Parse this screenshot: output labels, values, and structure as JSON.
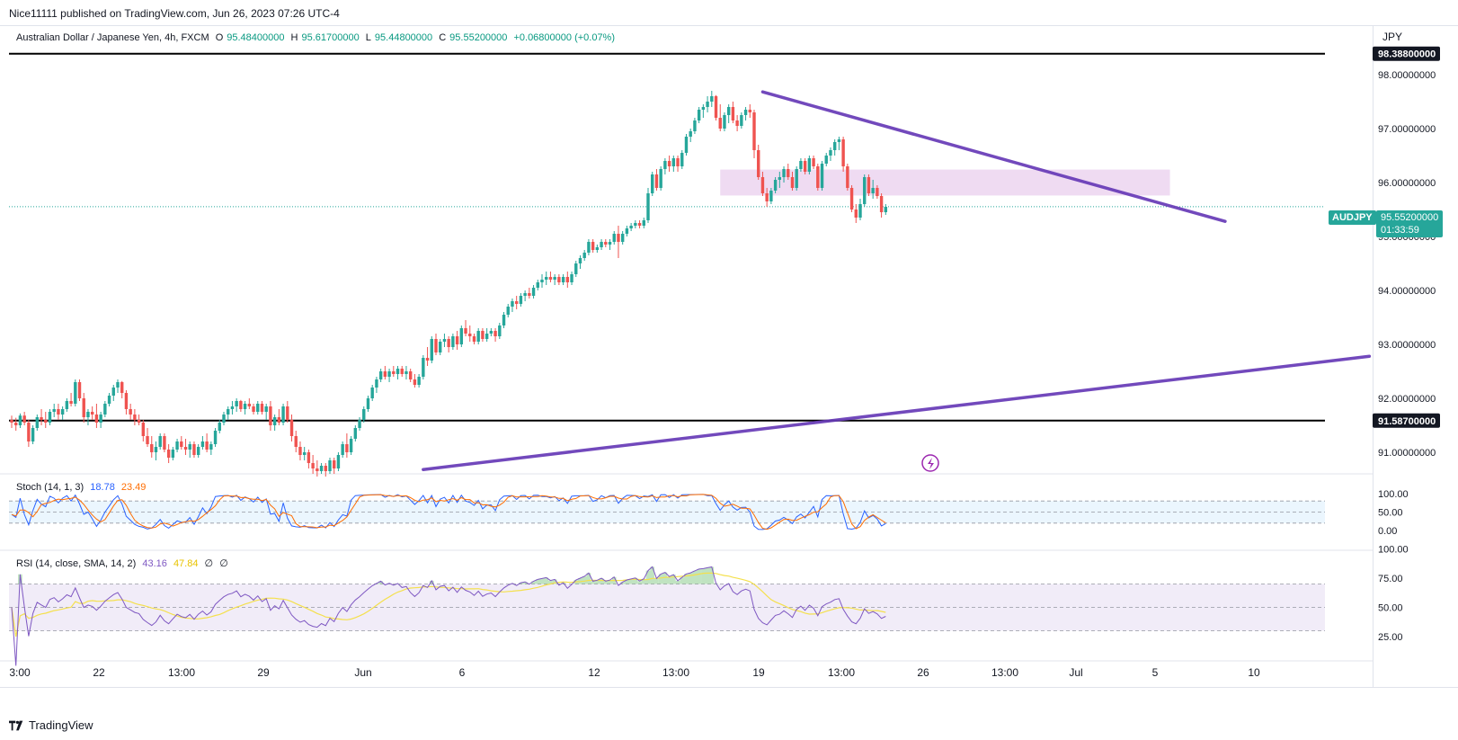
{
  "header": {
    "published": "Nice11111 published on TradingView.com, Jun 26, 2023 07:26 UTC-4"
  },
  "legend": {
    "symbol": "Australian Dollar / Japanese Yen, 4h, FXCM",
    "open_label": "O",
    "open": "95.48400000",
    "high_label": "H",
    "high": "95.61700000",
    "low_label": "L",
    "low": "95.44800000",
    "close_label": "C",
    "close": "95.55200000",
    "change": "+0.06800000 (+0.07%)"
  },
  "currency": "JPY",
  "price_axis": {
    "ticks": [
      "98.00000000",
      "97.00000000",
      "96.00000000",
      "95.00000000",
      "94.00000000",
      "93.00000000",
      "92.00000000",
      "91.00000000"
    ],
    "levels": [
      {
        "label": "98.38800000",
        "value": 98.388
      },
      {
        "label": "91.58700000",
        "value": 91.587
      }
    ],
    "ticker": "AUDJPY",
    "last_price": "95.55200000",
    "countdown": "01:33:59"
  },
  "time_axis": [
    "3:00",
    "22",
    "13:00",
    "29",
    "Jun",
    "6",
    "12",
    "13:00",
    "19",
    "13:00",
    "26",
    "13:00",
    "Jul",
    "5",
    "10"
  ],
  "stoch": {
    "label": "Stoch (14, 1, 3)",
    "k": "18.78",
    "d": "23.49",
    "axis": [
      "100.00",
      "50.00",
      "0.00"
    ],
    "colors": {
      "k": "#2962ff",
      "d": "#ff6d00",
      "band": "#e3f2fd"
    }
  },
  "rsi": {
    "label": "RSI (14, close, SMA, 14, 2)",
    "rsi": "43.16",
    "ma": "47.84",
    "extra1": "∅",
    "extra2": "∅",
    "axis": [
      "100.00",
      "75.00",
      "50.00",
      "25.00"
    ],
    "colors": {
      "rsi": "#7e57c2",
      "ma": "#f4e04d",
      "band": "#ede7f6"
    }
  },
  "footer": {
    "brand": "TradingView"
  },
  "chart_data": {
    "type": "candlestick",
    "symbol": "AUDJPY",
    "timeframe": "4h",
    "ylim": [
      90.6,
      98.9
    ],
    "horizontal_levels": [
      98.388,
      91.587
    ],
    "trendlines": [
      {
        "from": {
          "bar": 177,
          "price": 97.68
        },
        "to": {
          "bar": 286,
          "price": 95.28
        }
      },
      {
        "from": {
          "bar": 97,
          "price": 90.68
        },
        "to": {
          "bar": 320,
          "price": 92.78
        }
      }
    ],
    "zone": {
      "from_bar": 167,
      "to_bar": 273,
      "low": 95.76,
      "high": 96.24
    },
    "ohlc": [
      [
        91.6,
        91.68,
        91.45,
        91.55
      ],
      [
        91.55,
        91.64,
        91.4,
        91.5
      ],
      [
        91.5,
        91.72,
        91.45,
        91.68
      ],
      [
        91.68,
        91.75,
        91.5,
        91.55
      ],
      [
        91.55,
        91.6,
        91.1,
        91.2
      ],
      [
        91.2,
        91.5,
        91.15,
        91.45
      ],
      [
        91.45,
        91.7,
        91.4,
        91.65
      ],
      [
        91.65,
        91.8,
        91.5,
        91.6
      ],
      [
        91.6,
        91.75,
        91.45,
        91.55
      ],
      [
        91.55,
        91.8,
        91.5,
        91.75
      ],
      [
        91.75,
        91.9,
        91.65,
        91.8
      ],
      [
        91.8,
        91.9,
        91.6,
        91.7
      ],
      [
        91.7,
        91.85,
        91.6,
        91.8
      ],
      [
        91.8,
        92.0,
        91.75,
        91.95
      ],
      [
        91.95,
        92.1,
        91.85,
        91.9
      ],
      [
        91.9,
        92.35,
        91.85,
        92.3
      ],
      [
        92.3,
        92.35,
        91.95,
        92.0
      ],
      [
        92.0,
        92.1,
        91.55,
        91.65
      ],
      [
        91.65,
        91.8,
        91.5,
        91.75
      ],
      [
        91.75,
        91.85,
        91.6,
        91.7
      ],
      [
        91.7,
        91.9,
        91.45,
        91.55
      ],
      [
        91.55,
        91.75,
        91.45,
        91.7
      ],
      [
        91.7,
        91.95,
        91.65,
        91.9
      ],
      [
        91.9,
        92.1,
        91.85,
        92.05
      ],
      [
        92.05,
        92.25,
        91.95,
        92.2
      ],
      [
        92.2,
        92.35,
        92.1,
        92.3
      ],
      [
        92.3,
        92.32,
        92.0,
        92.1
      ],
      [
        92.1,
        92.15,
        91.7,
        91.8
      ],
      [
        91.8,
        91.9,
        91.6,
        91.7
      ],
      [
        91.7,
        91.8,
        91.5,
        91.6
      ],
      [
        91.6,
        91.7,
        91.5,
        91.55
      ],
      [
        91.55,
        91.6,
        91.2,
        91.3
      ],
      [
        91.3,
        91.45,
        91.1,
        91.15
      ],
      [
        91.15,
        91.3,
        90.9,
        91.0
      ],
      [
        91.0,
        91.2,
        90.85,
        91.1
      ],
      [
        91.1,
        91.35,
        91.05,
        91.3
      ],
      [
        91.3,
        91.35,
        91.0,
        91.05
      ],
      [
        91.05,
        91.15,
        90.8,
        90.9
      ],
      [
        90.9,
        91.1,
        90.85,
        91.05
      ],
      [
        91.05,
        91.25,
        91.0,
        91.2
      ],
      [
        91.2,
        91.3,
        91.05,
        91.1
      ],
      [
        91.1,
        91.25,
        90.95,
        91.05
      ],
      [
        91.05,
        91.2,
        90.9,
        91.15
      ],
      [
        91.15,
        91.2,
        90.9,
        90.95
      ],
      [
        90.95,
        91.15,
        90.9,
        91.1
      ],
      [
        91.1,
        91.3,
        91.05,
        91.2
      ],
      [
        91.2,
        91.35,
        91.0,
        91.05
      ],
      [
        91.05,
        91.2,
        90.95,
        91.15
      ],
      [
        91.15,
        91.45,
        91.1,
        91.4
      ],
      [
        91.4,
        91.6,
        91.35,
        91.55
      ],
      [
        91.55,
        91.75,
        91.5,
        91.7
      ],
      [
        91.7,
        91.85,
        91.6,
        91.8
      ],
      [
        91.8,
        91.95,
        91.7,
        91.85
      ],
      [
        91.85,
        92.0,
        91.75,
        91.95
      ],
      [
        91.95,
        91.97,
        91.75,
        91.8
      ],
      [
        91.8,
        91.95,
        91.7,
        91.9
      ],
      [
        91.9,
        92.0,
        91.8,
        91.85
      ],
      [
        91.85,
        91.9,
        91.7,
        91.75
      ],
      [
        91.75,
        91.95,
        91.7,
        91.9
      ],
      [
        91.9,
        91.95,
        91.7,
        91.75
      ],
      [
        91.75,
        91.9,
        91.6,
        91.85
      ],
      [
        91.85,
        91.95,
        91.4,
        91.5
      ],
      [
        91.5,
        91.7,
        91.4,
        91.65
      ],
      [
        91.65,
        91.8,
        91.5,
        91.55
      ],
      [
        91.55,
        91.9,
        91.5,
        91.85
      ],
      [
        91.85,
        91.95,
        91.55,
        91.6
      ],
      [
        91.6,
        91.7,
        91.2,
        91.3
      ],
      [
        91.3,
        91.4,
        91.0,
        91.1
      ],
      [
        91.1,
        91.2,
        90.85,
        90.95
      ],
      [
        90.95,
        91.1,
        90.85,
        91.0
      ],
      [
        91.0,
        91.05,
        90.7,
        90.8
      ],
      [
        90.8,
        90.95,
        90.6,
        90.7
      ],
      [
        90.7,
        90.85,
        90.55,
        90.65
      ],
      [
        90.65,
        90.8,
        90.6,
        90.75
      ],
      [
        90.75,
        90.8,
        90.55,
        90.65
      ],
      [
        90.65,
        90.9,
        90.6,
        90.85
      ],
      [
        90.85,
        90.9,
        90.6,
        90.7
      ],
      [
        90.7,
        91.0,
        90.65,
        90.95
      ],
      [
        90.95,
        91.2,
        90.9,
        91.15
      ],
      [
        91.15,
        91.35,
        90.9,
        91.0
      ],
      [
        91.0,
        91.3,
        90.95,
        91.25
      ],
      [
        91.25,
        91.5,
        91.2,
        91.45
      ],
      [
        91.45,
        91.65,
        91.4,
        91.6
      ],
      [
        91.6,
        91.85,
        91.55,
        91.8
      ],
      [
        91.8,
        92.05,
        91.75,
        92.0
      ],
      [
        92.0,
        92.25,
        91.95,
        92.2
      ],
      [
        92.2,
        92.4,
        92.1,
        92.35
      ],
      [
        92.35,
        92.55,
        92.3,
        92.5
      ],
      [
        92.5,
        92.6,
        92.35,
        92.4
      ],
      [
        92.4,
        92.55,
        92.3,
        92.5
      ],
      [
        92.5,
        92.6,
        92.4,
        92.45
      ],
      [
        92.45,
        92.6,
        92.35,
        92.55
      ],
      [
        92.55,
        92.6,
        92.4,
        92.45
      ],
      [
        92.45,
        92.6,
        92.35,
        92.5
      ],
      [
        92.5,
        92.55,
        92.3,
        92.35
      ],
      [
        92.35,
        92.45,
        92.2,
        92.25
      ],
      [
        92.25,
        92.45,
        92.2,
        92.4
      ],
      [
        92.4,
        92.8,
        92.35,
        92.75
      ],
      [
        92.75,
        92.95,
        92.6,
        92.7
      ],
      [
        92.7,
        93.15,
        92.65,
        93.1
      ],
      [
        93.1,
        93.2,
        92.8,
        92.85
      ],
      [
        92.85,
        93.1,
        92.8,
        93.05
      ],
      [
        93.05,
        93.2,
        92.95,
        93.1
      ],
      [
        93.1,
        93.15,
        92.85,
        92.95
      ],
      [
        92.95,
        93.2,
        92.9,
        93.15
      ],
      [
        93.15,
        93.25,
        92.9,
        93.0
      ],
      [
        93.0,
        93.35,
        92.95,
        93.3
      ],
      [
        93.3,
        93.45,
        93.15,
        93.2
      ],
      [
        93.2,
        93.35,
        93.05,
        93.15
      ],
      [
        93.15,
        93.2,
        93.0,
        93.05
      ],
      [
        93.05,
        93.3,
        93.0,
        93.25
      ],
      [
        93.25,
        93.3,
        93.05,
        93.1
      ],
      [
        93.1,
        93.3,
        93.05,
        93.2
      ],
      [
        93.2,
        93.3,
        93.15,
        93.25
      ],
      [
        93.25,
        93.3,
        93.05,
        93.15
      ],
      [
        93.15,
        93.4,
        93.1,
        93.35
      ],
      [
        93.35,
        93.6,
        93.3,
        93.55
      ],
      [
        93.55,
        93.75,
        93.5,
        93.7
      ],
      [
        93.7,
        93.85,
        93.6,
        93.8
      ],
      [
        93.8,
        93.9,
        93.65,
        93.75
      ],
      [
        93.75,
        93.95,
        93.7,
        93.9
      ],
      [
        93.9,
        94.0,
        93.8,
        93.95
      ],
      [
        93.95,
        94.05,
        93.85,
        93.9
      ],
      [
        93.9,
        94.1,
        93.85,
        94.05
      ],
      [
        94.05,
        94.2,
        94.0,
        94.15
      ],
      [
        94.15,
        94.3,
        94.05,
        94.2
      ],
      [
        94.2,
        94.35,
        94.1,
        94.25
      ],
      [
        94.25,
        94.35,
        94.15,
        94.2
      ],
      [
        94.2,
        94.3,
        94.1,
        94.25
      ],
      [
        94.25,
        94.3,
        94.1,
        94.15
      ],
      [
        94.15,
        94.3,
        94.1,
        94.25
      ],
      [
        94.25,
        94.35,
        94.05,
        94.15
      ],
      [
        94.15,
        94.35,
        94.1,
        94.3
      ],
      [
        94.3,
        94.55,
        94.25,
        94.5
      ],
      [
        94.5,
        94.65,
        94.4,
        94.6
      ],
      [
        94.6,
        94.75,
        94.55,
        94.7
      ],
      [
        94.7,
        94.95,
        94.65,
        94.9
      ],
      [
        94.9,
        94.95,
        94.7,
        94.75
      ],
      [
        94.75,
        94.85,
        94.7,
        94.8
      ],
      [
        94.8,
        94.95,
        94.75,
        94.9
      ],
      [
        94.9,
        94.95,
        94.8,
        94.85
      ],
      [
        94.85,
        94.95,
        94.75,
        94.9
      ],
      [
        94.9,
        95.1,
        94.85,
        95.05
      ],
      [
        95.05,
        95.2,
        94.6,
        94.9
      ],
      [
        94.9,
        95.1,
        94.85,
        95.05
      ],
      [
        95.05,
        95.2,
        95.0,
        95.15
      ],
      [
        95.15,
        95.25,
        95.1,
        95.2
      ],
      [
        95.2,
        95.3,
        95.15,
        95.25
      ],
      [
        95.25,
        95.3,
        95.15,
        95.2
      ],
      [
        95.2,
        95.35,
        95.15,
        95.3
      ],
      [
        95.3,
        95.9,
        95.25,
        95.8
      ],
      [
        95.8,
        96.2,
        95.75,
        96.15
      ],
      [
        96.15,
        96.25,
        95.85,
        95.9
      ],
      [
        95.9,
        96.3,
        95.85,
        96.25
      ],
      [
        96.25,
        96.45,
        96.15,
        96.4
      ],
      [
        96.4,
        96.5,
        96.2,
        96.3
      ],
      [
        96.3,
        96.5,
        96.2,
        96.45
      ],
      [
        96.45,
        96.5,
        96.2,
        96.3
      ],
      [
        96.3,
        96.6,
        96.25,
        96.55
      ],
      [
        96.55,
        96.9,
        96.5,
        96.85
      ],
      [
        96.85,
        97.0,
        96.75,
        96.95
      ],
      [
        96.95,
        97.2,
        96.9,
        97.15
      ],
      [
        97.15,
        97.4,
        97.1,
        97.35
      ],
      [
        97.35,
        97.45,
        97.2,
        97.4
      ],
      [
        97.4,
        97.6,
        97.3,
        97.5
      ],
      [
        97.5,
        97.7,
        97.4,
        97.6
      ],
      [
        97.6,
        97.62,
        97.15,
        97.2
      ],
      [
        97.2,
        97.45,
        96.95,
        97.0
      ],
      [
        97.0,
        97.3,
        96.95,
        97.25
      ],
      [
        97.25,
        97.45,
        97.1,
        97.4
      ],
      [
        97.4,
        97.5,
        97.1,
        97.15
      ],
      [
        97.15,
        97.25,
        96.95,
        97.05
      ],
      [
        97.05,
        97.3,
        97.0,
        97.25
      ],
      [
        97.25,
        97.4,
        97.15,
        97.35
      ],
      [
        97.35,
        97.45,
        97.2,
        97.3
      ],
      [
        97.3,
        97.35,
        96.45,
        96.6
      ],
      [
        96.6,
        96.7,
        96.05,
        96.1
      ],
      [
        96.1,
        96.2,
        95.75,
        95.8
      ],
      [
        95.8,
        95.9,
        95.55,
        95.65
      ],
      [
        95.65,
        95.9,
        95.6,
        95.85
      ],
      [
        95.85,
        96.1,
        95.8,
        96.05
      ],
      [
        96.05,
        96.2,
        95.9,
        96.1
      ],
      [
        96.1,
        96.3,
        96.0,
        96.25
      ],
      [
        96.25,
        96.35,
        96.05,
        96.1
      ],
      [
        96.1,
        96.2,
        95.85,
        95.9
      ],
      [
        95.9,
        96.3,
        95.85,
        96.25
      ],
      [
        96.25,
        96.45,
        96.2,
        96.4
      ],
      [
        96.4,
        96.45,
        96.15,
        96.2
      ],
      [
        96.2,
        96.5,
        96.15,
        96.45
      ],
      [
        96.45,
        96.5,
        96.25,
        96.3
      ],
      [
        96.3,
        96.35,
        95.85,
        95.9
      ],
      [
        95.9,
        96.4,
        95.85,
        96.35
      ],
      [
        96.35,
        96.55,
        96.3,
        96.5
      ],
      [
        96.5,
        96.65,
        96.4,
        96.6
      ],
      [
        96.6,
        96.8,
        96.5,
        96.75
      ],
      [
        96.75,
        96.85,
        96.6,
        96.8
      ],
      [
        96.8,
        96.85,
        96.2,
        96.3
      ],
      [
        96.3,
        96.35,
        95.85,
        95.9
      ],
      [
        95.9,
        95.95,
        95.45,
        95.5
      ],
      [
        95.5,
        95.6,
        95.25,
        95.35
      ],
      [
        95.35,
        95.7,
        95.3,
        95.6
      ],
      [
        95.6,
        96.15,
        95.55,
        96.1
      ],
      [
        96.1,
        96.15,
        95.75,
        95.8
      ],
      [
        95.8,
        96.05,
        95.7,
        95.9
      ],
      [
        95.9,
        95.95,
        95.7,
        95.75
      ],
      [
        95.75,
        95.8,
        95.35,
        95.45
      ],
      [
        95.45,
        95.6,
        95.4,
        95.55
      ]
    ],
    "indicators": [
      "Stoch (14, 1, 3)",
      "RSI (14, close, SMA, 14, 2)"
    ]
  }
}
